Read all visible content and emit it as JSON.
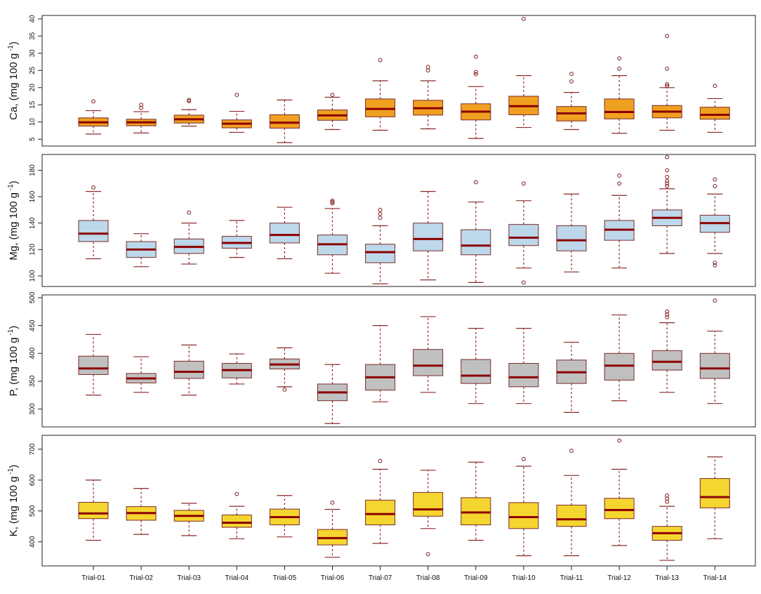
{
  "chart_data": [
    {
      "type": "box",
      "title": "",
      "ylabel": "Ca, (mg 100 g",
      "ylabel_sup": "-1",
      "ylabel_close": ")",
      "ylim": [
        3,
        41
      ],
      "yticks": [
        5,
        10,
        15,
        20,
        25,
        30,
        35,
        40
      ],
      "box_color": "#f0a020",
      "median_color": "#8b0000",
      "whisker_color": "#8b2a2a",
      "categories": [
        "Trial-01",
        "Trial-02",
        "Trial-03",
        "Trial-04",
        "Trial-05",
        "Trial-06",
        "Trial-07",
        "Trial-08",
        "Trial-09",
        "Trial-10",
        "Trial-11",
        "Trial-12",
        "Trial-13",
        "Trial-14"
      ],
      "boxes": [
        {
          "min": 6.5,
          "q1": 8.8,
          "median": 9.9,
          "q3": 11.2,
          "max": 13.3,
          "outliers": [
            16
          ]
        },
        {
          "min": 6.8,
          "q1": 8.9,
          "median": 9.9,
          "q3": 10.8,
          "max": 13,
          "outliers": [
            14.1,
            15
          ]
        },
        {
          "min": 8.8,
          "q1": 9.7,
          "median": 10.8,
          "q3": 12,
          "max": 13.6,
          "outliers": [
            16.1,
            16.4
          ]
        },
        {
          "min": 7,
          "q1": 8.3,
          "median": 9.5,
          "q3": 10.6,
          "max": 13.1,
          "outliers": [
            17.9
          ]
        },
        {
          "min": 4,
          "q1": 8.2,
          "median": 9.8,
          "q3": 12.1,
          "max": 16.4,
          "outliers": []
        },
        {
          "min": 7.8,
          "q1": 10.5,
          "median": 11.9,
          "q3": 13.5,
          "max": 17.2,
          "outliers": [
            17.9
          ]
        },
        {
          "min": 7.6,
          "q1": 11.5,
          "median": 13.8,
          "q3": 16.7,
          "max": 22,
          "outliers": [
            28
          ]
        },
        {
          "min": 8,
          "q1": 12,
          "median": 14,
          "q3": 16.3,
          "max": 22,
          "outliers": [
            25,
            26
          ]
        },
        {
          "min": 5.2,
          "q1": 10.6,
          "median": 13,
          "q3": 15.3,
          "max": 20.3,
          "outliers": [
            23.9,
            24.5,
            29
          ]
        },
        {
          "min": 8.4,
          "q1": 12.1,
          "median": 14.6,
          "q3": 17.5,
          "max": 23.5,
          "outliers": [
            40
          ]
        },
        {
          "min": 7.8,
          "q1": 10.3,
          "median": 12.5,
          "q3": 14.5,
          "max": 18.6,
          "outliers": [
            21.8,
            24
          ]
        },
        {
          "min": 6.7,
          "q1": 10.9,
          "median": 12.9,
          "q3": 16.7,
          "max": 23.5,
          "outliers": [
            25.5,
            28.5
          ]
        },
        {
          "min": 7.6,
          "q1": 11.2,
          "median": 13,
          "q3": 14.8,
          "max": 20,
          "outliers": [
            20.5,
            21,
            25.5,
            35
          ]
        },
        {
          "min": 7,
          "q1": 10.8,
          "median": 12.1,
          "q3": 14.3,
          "max": 16.8,
          "outliers": [
            20.5
          ]
        }
      ]
    },
    {
      "type": "box",
      "title": "",
      "ylabel": "Mg, (mg 100 g",
      "ylabel_sup": "-1",
      "ylabel_close": ")",
      "ylim": [
        92,
        192
      ],
      "yticks": [
        100,
        120,
        140,
        160,
        180
      ],
      "box_color": "#bcd8ea",
      "median_color": "#8b0000",
      "whisker_color": "#8b2a2a",
      "categories": [
        "Trial-01",
        "Trial-02",
        "Trial-03",
        "Trial-04",
        "Trial-05",
        "Trial-06",
        "Trial-07",
        "Trial-08",
        "Trial-09",
        "Trial-10",
        "Trial-11",
        "Trial-12",
        "Trial-13",
        "Trial-14"
      ],
      "boxes": [
        {
          "min": 113,
          "q1": 126,
          "median": 132,
          "q3": 142,
          "max": 164,
          "outliers": [
            167
          ]
        },
        {
          "min": 107,
          "q1": 114,
          "median": 120,
          "q3": 126,
          "max": 132,
          "outliers": []
        },
        {
          "min": 109,
          "q1": 117,
          "median": 122,
          "q3": 128,
          "max": 140,
          "outliers": [
            148
          ]
        },
        {
          "min": 114,
          "q1": 121,
          "median": 125,
          "q3": 130,
          "max": 142,
          "outliers": []
        },
        {
          "min": 113,
          "q1": 125,
          "median": 131,
          "q3": 140,
          "max": 152,
          "outliers": []
        },
        {
          "min": 102,
          "q1": 116,
          "median": 124,
          "q3": 131,
          "max": 151,
          "outliers": [
            155,
            156,
            157
          ]
        },
        {
          "min": 94,
          "q1": 110,
          "median": 118,
          "q3": 124,
          "max": 138,
          "outliers": [
            144,
            147,
            150
          ]
        },
        {
          "min": 97,
          "q1": 119,
          "median": 128,
          "q3": 140,
          "max": 164,
          "outliers": []
        },
        {
          "min": 95,
          "q1": 116,
          "median": 123,
          "q3": 135,
          "max": 156,
          "outliers": [
            171
          ]
        },
        {
          "min": 106,
          "q1": 123,
          "median": 129,
          "q3": 139,
          "max": 157,
          "outliers": [
            95,
            170
          ]
        },
        {
          "min": 103,
          "q1": 119,
          "median": 127,
          "q3": 138,
          "max": 162,
          "outliers": []
        },
        {
          "min": 106,
          "q1": 127,
          "median": 135,
          "q3": 142,
          "max": 161,
          "outliers": [
            170,
            176
          ]
        },
        {
          "min": 117,
          "q1": 138,
          "median": 144,
          "q3": 150,
          "max": 166,
          "outliers": [
            168,
            170,
            172,
            175,
            180,
            190
          ]
        },
        {
          "min": 117,
          "q1": 133,
          "median": 140,
          "q3": 146,
          "max": 162,
          "outliers": [
            108,
            110,
            168,
            173
          ]
        }
      ]
    },
    {
      "type": "box",
      "title": "",
      "ylabel": "P, (mg 100 g",
      "ylabel_sup": "-1",
      "ylabel_close": ")",
      "ylim": [
        268,
        505
      ],
      "yticks": [
        300,
        350,
        400,
        450,
        500
      ],
      "box_color": "#c0c0c0",
      "median_color": "#8b0000",
      "whisker_color": "#8b2a2a",
      "categories": [
        "Trial-01",
        "Trial-02",
        "Trial-03",
        "Trial-04",
        "Trial-05",
        "Trial-06",
        "Trial-07",
        "Trial-08",
        "Trial-09",
        "Trial-10",
        "Trial-11",
        "Trial-12",
        "Trial-13",
        "Trial-14"
      ],
      "boxes": [
        {
          "min": 325,
          "q1": 362,
          "median": 373,
          "q3": 395,
          "max": 434,
          "outliers": []
        },
        {
          "min": 330,
          "q1": 347,
          "median": 355,
          "q3": 364,
          "max": 394,
          "outliers": []
        },
        {
          "min": 325,
          "q1": 355,
          "median": 367,
          "q3": 386,
          "max": 415,
          "outliers": []
        },
        {
          "min": 345,
          "q1": 356,
          "median": 370,
          "q3": 382,
          "max": 399,
          "outliers": []
        },
        {
          "min": 340,
          "q1": 372,
          "median": 380,
          "q3": 390,
          "max": 410,
          "outliers": [
            335
          ]
        },
        {
          "min": 274,
          "q1": 315,
          "median": 330,
          "q3": 345,
          "max": 380,
          "outliers": []
        },
        {
          "min": 313,
          "q1": 334,
          "median": 357,
          "q3": 380,
          "max": 450,
          "outliers": []
        },
        {
          "min": 330,
          "q1": 360,
          "median": 378,
          "q3": 407,
          "max": 466,
          "outliers": []
        },
        {
          "min": 310,
          "q1": 346,
          "median": 360,
          "q3": 389,
          "max": 445,
          "outliers": []
        },
        {
          "min": 310,
          "q1": 340,
          "median": 357,
          "q3": 382,
          "max": 445,
          "outliers": []
        },
        {
          "min": 294,
          "q1": 346,
          "median": 366,
          "q3": 388,
          "max": 420,
          "outliers": []
        },
        {
          "min": 315,
          "q1": 352,
          "median": 378,
          "q3": 400,
          "max": 469,
          "outliers": []
        },
        {
          "min": 330,
          "q1": 370,
          "median": 385,
          "q3": 405,
          "max": 455,
          "outliers": [
            465,
            470,
            475
          ]
        },
        {
          "min": 310,
          "q1": 355,
          "median": 373,
          "q3": 400,
          "max": 440,
          "outliers": [
            495
          ]
        }
      ]
    },
    {
      "type": "box",
      "title": "",
      "ylabel": "K, (mg 100 g",
      "ylabel_sup": "-1",
      "ylabel_close": ")",
      "ylim": [
        322,
        745
      ],
      "yticks": [
        400,
        500,
        600,
        700
      ],
      "box_color": "#f5d530",
      "median_color": "#8b0000",
      "whisker_color": "#8b2a2a",
      "categories": [
        "Trial-01",
        "Trial-02",
        "Trial-03",
        "Trial-04",
        "Trial-05",
        "Trial-06",
        "Trial-07",
        "Trial-08",
        "Trial-09",
        "Trial-10",
        "Trial-11",
        "Trial-12",
        "Trial-13",
        "Trial-14"
      ],
      "boxes": [
        {
          "min": 405,
          "q1": 475,
          "median": 492,
          "q3": 528,
          "max": 600,
          "outliers": []
        },
        {
          "min": 424,
          "q1": 470,
          "median": 493,
          "q3": 514,
          "max": 573,
          "outliers": []
        },
        {
          "min": 420,
          "q1": 467,
          "median": 484,
          "q3": 502,
          "max": 525,
          "outliers": []
        },
        {
          "min": 410,
          "q1": 447,
          "median": 462,
          "q3": 487,
          "max": 515,
          "outliers": [
            555
          ]
        },
        {
          "min": 416,
          "q1": 455,
          "median": 480,
          "q3": 506,
          "max": 550,
          "outliers": []
        },
        {
          "min": 350,
          "q1": 390,
          "median": 412,
          "q3": 440,
          "max": 505,
          "outliers": [
            527
          ]
        },
        {
          "min": 395,
          "q1": 455,
          "median": 490,
          "q3": 535,
          "max": 635,
          "outliers": [
            662
          ]
        },
        {
          "min": 443,
          "q1": 483,
          "median": 505,
          "q3": 560,
          "max": 632,
          "outliers": [
            360
          ]
        },
        {
          "min": 405,
          "q1": 455,
          "median": 495,
          "q3": 543,
          "max": 658,
          "outliers": []
        },
        {
          "min": 355,
          "q1": 443,
          "median": 480,
          "q3": 527,
          "max": 645,
          "outliers": [
            668
          ]
        },
        {
          "min": 355,
          "q1": 450,
          "median": 473,
          "q3": 519,
          "max": 615,
          "outliers": [
            695
          ]
        },
        {
          "min": 388,
          "q1": 475,
          "median": 503,
          "q3": 541,
          "max": 635,
          "outliers": [
            728
          ]
        },
        {
          "min": 340,
          "q1": 405,
          "median": 428,
          "q3": 450,
          "max": 515,
          "outliers": [
            530,
            540,
            550
          ]
        },
        {
          "min": 410,
          "q1": 510,
          "median": 545,
          "q3": 605,
          "max": 675,
          "outliers": []
        }
      ]
    }
  ]
}
